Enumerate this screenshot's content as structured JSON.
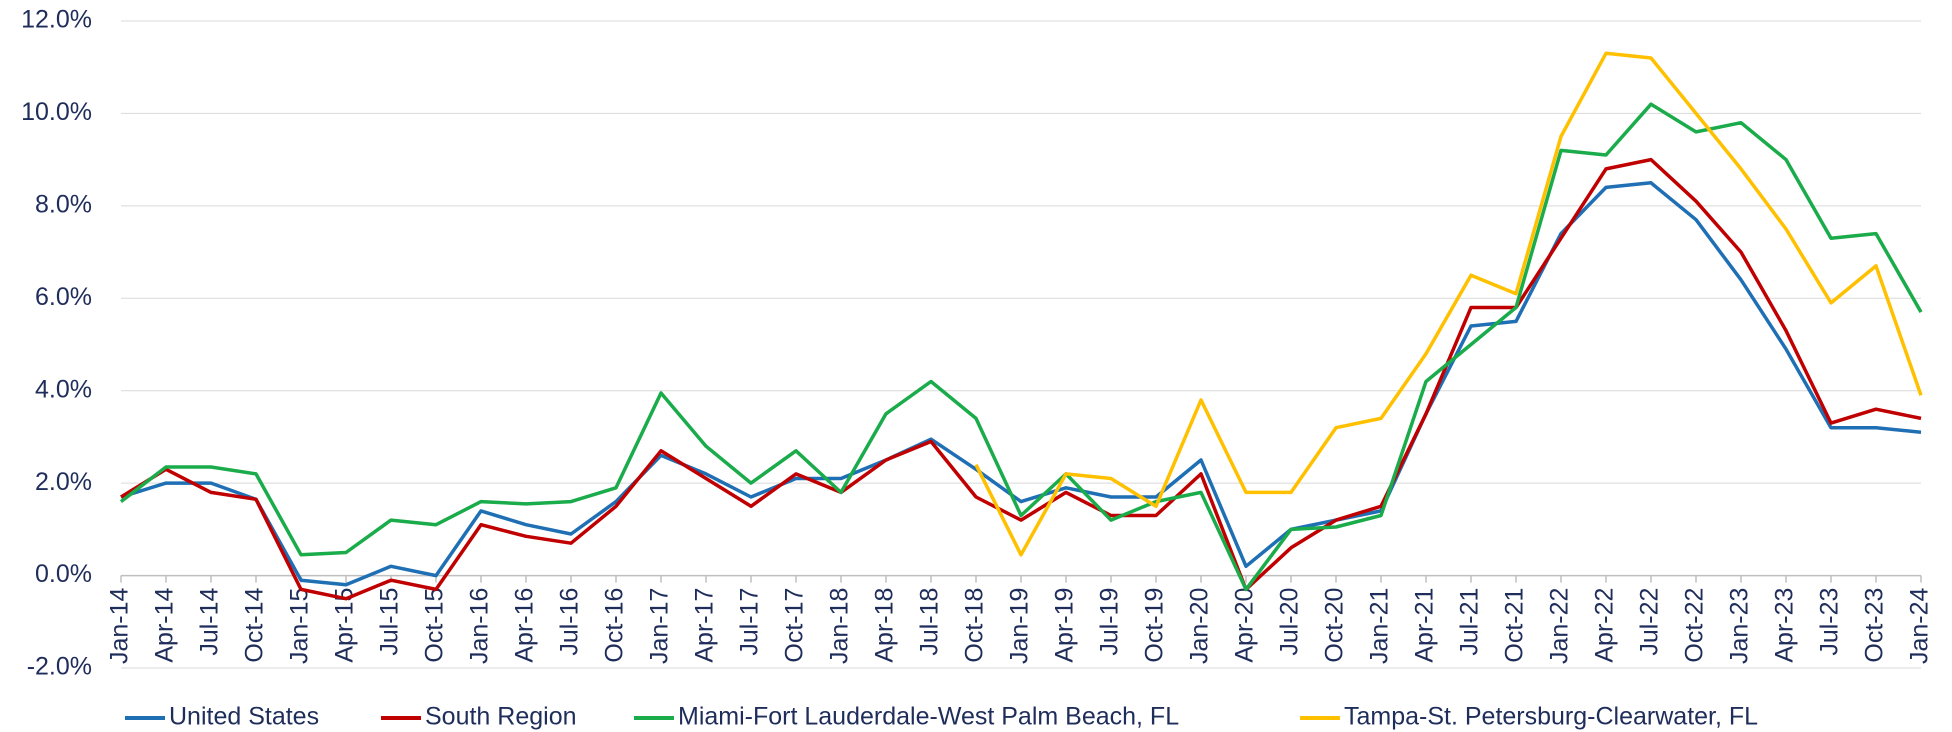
{
  "chart_data": {
    "type": "line",
    "categories": [
      "Jan-14",
      "Apr-14",
      "Jul-14",
      "Oct-14",
      "Jan-15",
      "Apr-15",
      "Jul-15",
      "Oct-15",
      "Jan-16",
      "Apr-16",
      "Jul-16",
      "Oct-16",
      "Jan-17",
      "Apr-17",
      "Jul-17",
      "Oct-17",
      "Jan-18",
      "Apr-18",
      "Jul-18",
      "Oct-18",
      "Jan-19",
      "Apr-19",
      "Jul-19",
      "Oct-19",
      "Jan-20",
      "Apr-20",
      "Jul-20",
      "Oct-20",
      "Jan-21",
      "Apr-21",
      "Jul-21",
      "Oct-21",
      "Jan-22",
      "Apr-22",
      "Jul-22",
      "Oct-22",
      "Jan-23",
      "Apr-23",
      "Jul-23",
      "Oct-23",
      "Jan-24"
    ],
    "series": [
      {
        "name": "United States",
        "color": "#1f6fb5",
        "values": [
          1.7,
          2.0,
          2.0,
          1.65,
          -0.1,
          -0.2,
          0.2,
          0.0,
          1.4,
          1.1,
          0.9,
          1.6,
          2.6,
          2.2,
          1.7,
          2.1,
          2.1,
          2.5,
          2.95,
          2.3,
          1.6,
          1.9,
          1.7,
          1.7,
          2.5,
          0.2,
          1.0,
          1.2,
          1.4,
          3.5,
          5.4,
          5.5,
          7.4,
          8.4,
          8.5,
          7.7,
          6.4,
          4.9,
          3.2,
          3.2,
          3.1
        ]
      },
      {
        "name": "South Region",
        "color": "#c00000",
        "values": [
          1.7,
          2.3,
          1.8,
          1.65,
          -0.3,
          -0.5,
          -0.1,
          -0.3,
          1.1,
          0.85,
          0.7,
          1.5,
          2.7,
          2.1,
          1.5,
          2.2,
          1.8,
          2.5,
          2.9,
          1.7,
          1.2,
          1.8,
          1.3,
          1.3,
          2.2,
          -0.3,
          0.6,
          1.2,
          1.5,
          3.5,
          5.8,
          5.8,
          7.3,
          8.8,
          9.0,
          8.1,
          7.0,
          5.3,
          3.3,
          3.6,
          3.4
        ]
      },
      {
        "name": "Miami-Fort Lauderdale-West Palm Beach, FL",
        "color": "#1aab4a",
        "values": [
          1.6,
          2.35,
          2.35,
          2.2,
          0.45,
          0.5,
          1.2,
          1.1,
          1.6,
          1.55,
          1.6,
          1.9,
          3.95,
          2.8,
          2.0,
          2.7,
          1.8,
          3.5,
          4.2,
          3.4,
          1.3,
          2.2,
          1.2,
          1.6,
          1.8,
          -0.3,
          1.0,
          1.05,
          1.3,
          4.2,
          5.0,
          5.8,
          9.2,
          9.1,
          10.2,
          9.6,
          9.8,
          9.0,
          7.3,
          7.4,
          5.7
        ]
      },
      {
        "name": "Tampa-St. Petersburg-Clearwater, FL",
        "color": "#ffc000",
        "values": [
          null,
          null,
          null,
          null,
          null,
          null,
          null,
          null,
          null,
          null,
          null,
          null,
          null,
          null,
          null,
          null,
          null,
          null,
          null,
          2.4,
          0.45,
          2.2,
          2.1,
          1.5,
          3.8,
          1.8,
          1.8,
          3.2,
          3.4,
          4.8,
          6.5,
          6.1,
          9.5,
          11.3,
          11.2,
          10.0,
          8.8,
          7.5,
          5.9,
          6.7,
          3.9
        ]
      }
    ],
    "ylim": [
      -2,
      12
    ],
    "yticks": [
      {
        "value": -2,
        "label": "-2.0%"
      },
      {
        "value": 0,
        "label": "0.0%"
      },
      {
        "value": 2,
        "label": "2.0%"
      },
      {
        "value": 4,
        "label": "4.0%"
      },
      {
        "value": 6,
        "label": "6.0%"
      },
      {
        "value": 8,
        "label": "8.0%"
      },
      {
        "value": 10,
        "label": "10.0%"
      },
      {
        "value": 12,
        "label": "12.0%"
      }
    ],
    "grid": true
  }
}
